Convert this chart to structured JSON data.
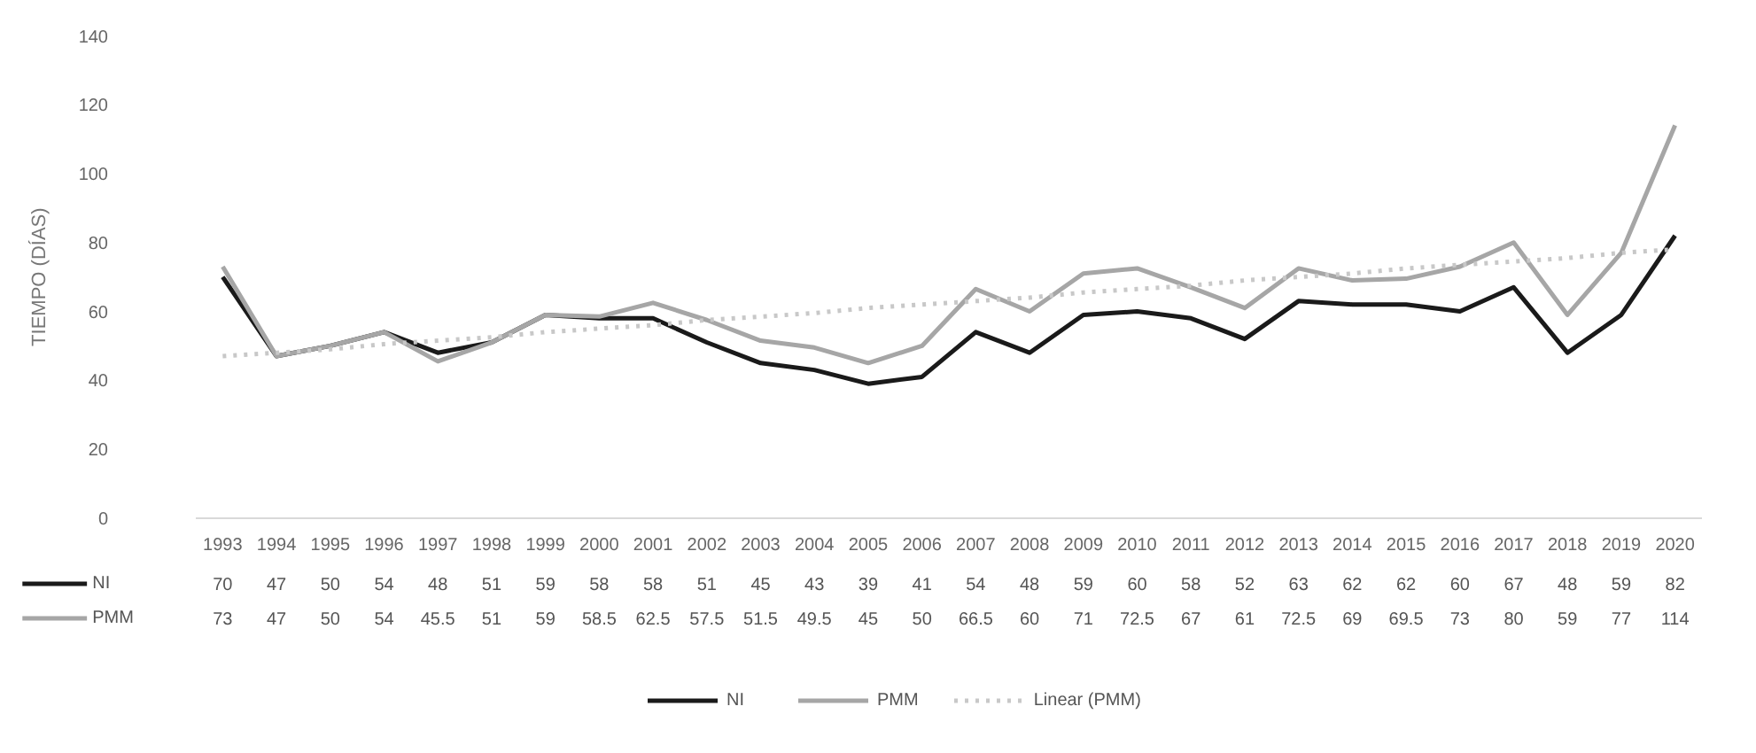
{
  "chart_data": {
    "type": "line",
    "ylabel": "TIEMPO (DÍAS)",
    "categories": [
      "1993",
      "1994",
      "1995",
      "1996",
      "1997",
      "1998",
      "1999",
      "2000",
      "2001",
      "2002",
      "2003",
      "2004",
      "2005",
      "2006",
      "2007",
      "2008",
      "2009",
      "2010",
      "2011",
      "2012",
      "2013",
      "2014",
      "2015",
      "2016",
      "2017",
      "2018",
      "2019",
      "2020"
    ],
    "ylim": [
      0,
      140
    ],
    "yticks": [
      0,
      20,
      40,
      60,
      80,
      100,
      120,
      140
    ],
    "series": [
      {
        "name": "NI",
        "color": "#1a1a1a",
        "values": [
          70,
          47,
          50,
          54,
          48,
          51,
          59,
          58,
          58,
          51,
          45,
          43,
          39,
          41,
          54,
          48,
          59,
          60,
          58,
          52,
          63,
          62,
          62,
          60,
          67,
          48,
          59,
          82
        ],
        "value_labels": [
          "70",
          "47",
          "50",
          "54",
          "48",
          "51",
          "59",
          "58",
          "58",
          "51",
          "45",
          "43",
          "39",
          "41",
          "54",
          "48",
          "59",
          "60",
          "58",
          "52",
          "63",
          "62",
          "62",
          "60",
          "67",
          "48",
          "59",
          "82"
        ]
      },
      {
        "name": "PMM",
        "color": "#a6a6a6",
        "values": [
          73,
          47,
          50,
          54,
          45.5,
          51,
          59,
          58.5,
          62.5,
          57.5,
          51.5,
          49.5,
          45,
          50,
          66.5,
          60,
          71,
          72.5,
          67,
          61,
          72.5,
          69,
          69.5,
          73,
          80,
          59,
          77,
          114
        ],
        "value_labels": [
          "73",
          "47",
          "50",
          "54",
          "45.5",
          "51",
          "59",
          "58.5",
          "62.5",
          "57.5",
          "51.5",
          "49.5",
          "45",
          "50",
          "66.5",
          "60",
          "71",
          "72.5",
          "67",
          "61",
          "72.5",
          "69",
          "69.5",
          "73",
          "80",
          "59",
          "77",
          "114"
        ]
      },
      {
        "name": "Linear (PMM)",
        "type": "line",
        "line_style": "dotted",
        "color": "#c8c8c8",
        "values": [
          47,
          48,
          49,
          50.5,
          51.5,
          52.5,
          54,
          55,
          56,
          57.5,
          58.5,
          59.5,
          61,
          62,
          63,
          64,
          65.5,
          66.5,
          67.5,
          69,
          70,
          71,
          72.5,
          73.5,
          74.5,
          75.5,
          77,
          78
        ]
      }
    ],
    "legend": "bottom",
    "grid": false,
    "marker": "none"
  }
}
